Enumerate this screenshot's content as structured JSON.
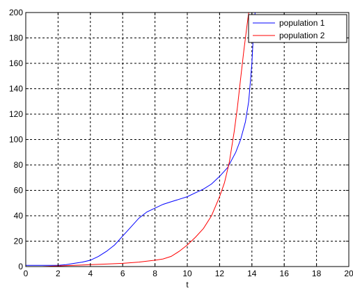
{
  "chart_data": {
    "type": "line",
    "title": "",
    "xlabel": "t",
    "ylabel": "",
    "xlim": [
      0,
      20
    ],
    "ylim": [
      0,
      200
    ],
    "xticks": [
      0,
      2,
      4,
      6,
      8,
      10,
      12,
      14,
      16,
      18,
      20
    ],
    "yticks": [
      0,
      20,
      40,
      60,
      80,
      100,
      120,
      140,
      160,
      180,
      200
    ],
    "grid": true,
    "legend_position": "top-right",
    "series": [
      {
        "name": "population 1",
        "color": "#0000ff",
        "x": [
          0,
          1,
          2,
          2.5,
          3,
          3.5,
          4,
          4.5,
          5,
          5.5,
          6,
          6.5,
          7,
          7.5,
          8,
          8.5,
          9,
          9.5,
          10,
          10.5,
          11,
          11.5,
          12,
          12.5,
          13,
          13.3,
          13.6,
          13.8,
          14,
          14.1,
          14.2
        ],
        "y": [
          1,
          1,
          1,
          1.5,
          2.5,
          3.5,
          5,
          8,
          12,
          17,
          24,
          31,
          38,
          43,
          46,
          49,
          51,
          53,
          55,
          58,
          61,
          65,
          71,
          78,
          90,
          100,
          114,
          130,
          160,
          185,
          200
        ]
      },
      {
        "name": "population 2",
        "color": "#ff0000",
        "x": [
          0,
          1,
          2,
          3,
          4,
          5,
          6,
          7,
          8,
          8.5,
          9,
          9.5,
          10,
          10.5,
          11,
          11.5,
          12,
          12.3,
          12.6,
          12.9,
          13.1,
          13.3,
          13.5,
          13.7,
          13.8
        ],
        "y": [
          0,
          0,
          0.5,
          1,
          1.5,
          2,
          2.5,
          3.5,
          5,
          6,
          8,
          12,
          17,
          23,
          30,
          40,
          55,
          66,
          82,
          106,
          125,
          148,
          170,
          190,
          200
        ]
      }
    ]
  }
}
